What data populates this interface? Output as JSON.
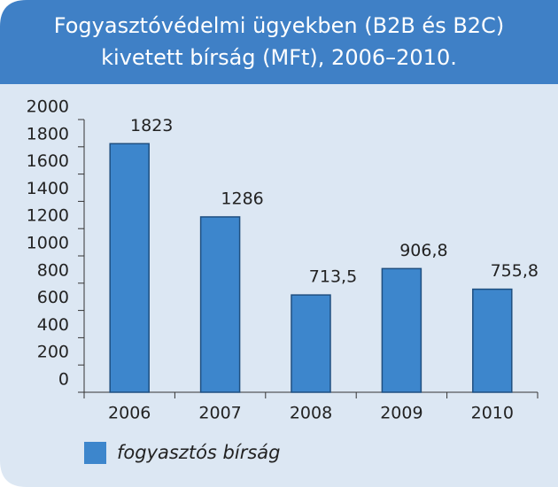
{
  "chart_data": {
    "type": "bar",
    "title": [
      "Fogyasztóvédelmi ügyekben (B2B és B2C)",
      "kivetett bírság (MFt), 2006–2010."
    ],
    "categories": [
      "2006",
      "2007",
      "2008",
      "2009",
      "2010"
    ],
    "series": [
      {
        "name": "fogyasztós bírság",
        "color": "#3d86cc",
        "values": [
          1823,
          1286,
          713.5,
          906.8,
          755.8
        ],
        "value_labels": [
          "1823",
          "1286",
          "713,5",
          "906,8",
          "755,8"
        ]
      }
    ],
    "ylim": [
      0,
      2000
    ],
    "yticks": [
      0,
      200,
      400,
      600,
      800,
      1000,
      1200,
      1400,
      1600,
      1800,
      2000
    ]
  }
}
